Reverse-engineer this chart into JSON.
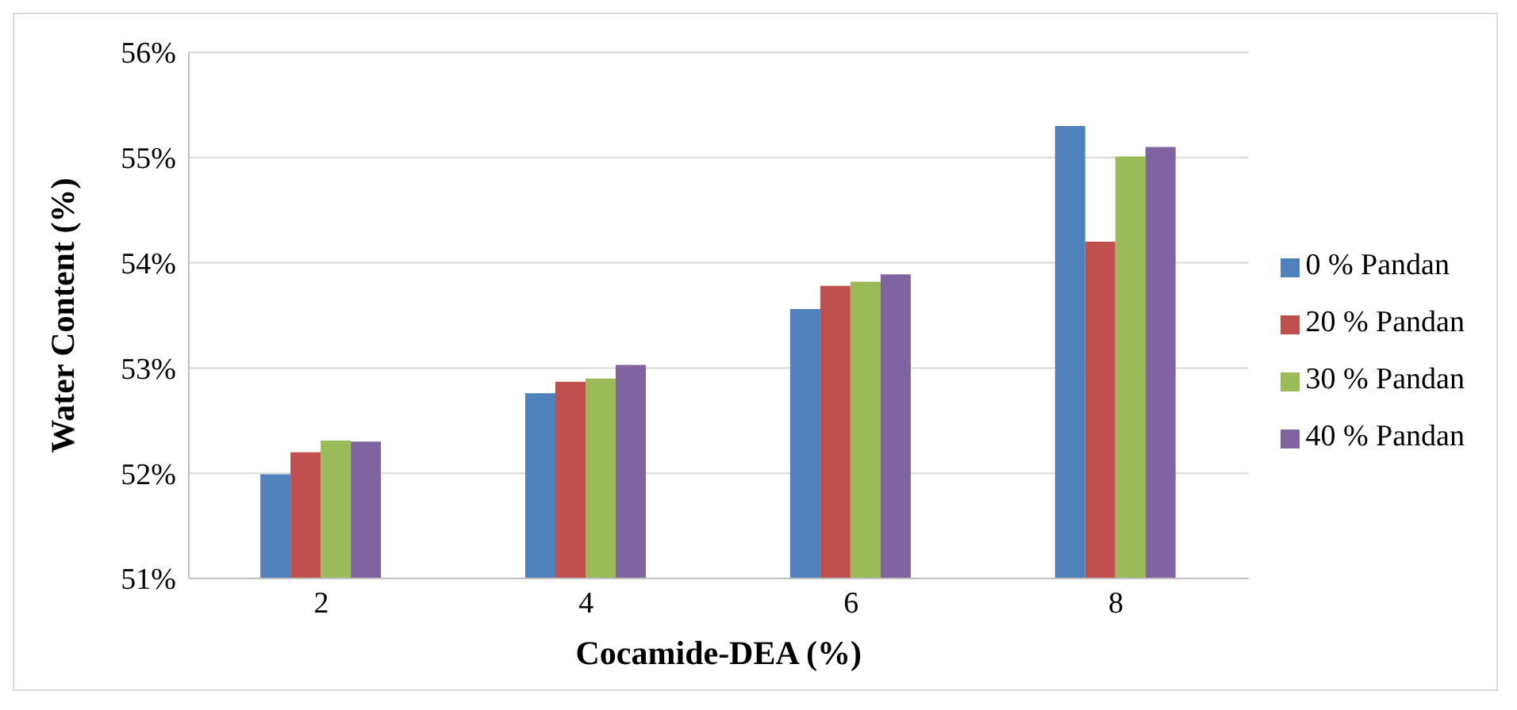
{
  "chart_data": {
    "type": "bar",
    "xlabel": "Cocamide-DEA (%)",
    "ylabel": "Water Content (%)",
    "categories": [
      "2",
      "4",
      "6",
      "8"
    ],
    "series": [
      {
        "name": "0 % Pandan",
        "color": "#4f81bd",
        "values": [
          51.99,
          52.76,
          53.56,
          55.3
        ]
      },
      {
        "name": "20 % Pandan",
        "color": "#c0504d",
        "values": [
          52.2,
          52.87,
          53.78,
          54.2
        ]
      },
      {
        "name": "30 % Pandan",
        "color": "#9bbb59",
        "values": [
          52.31,
          52.9,
          53.82,
          55.01
        ]
      },
      {
        "name": "40 % Pandan",
        "color": "#8064a2",
        "values": [
          52.3,
          53.03,
          53.89,
          55.1
        ]
      }
    ],
    "ylim": [
      51,
      56
    ],
    "yticks": [
      {
        "value": 51,
        "label": "51%"
      },
      {
        "value": 52,
        "label": "52%"
      },
      {
        "value": 53,
        "label": "53%"
      },
      {
        "value": 54,
        "label": "54%"
      },
      {
        "value": 55,
        "label": "55%"
      },
      {
        "value": 56,
        "label": "56%"
      }
    ],
    "grid": "y",
    "legend": "right"
  }
}
